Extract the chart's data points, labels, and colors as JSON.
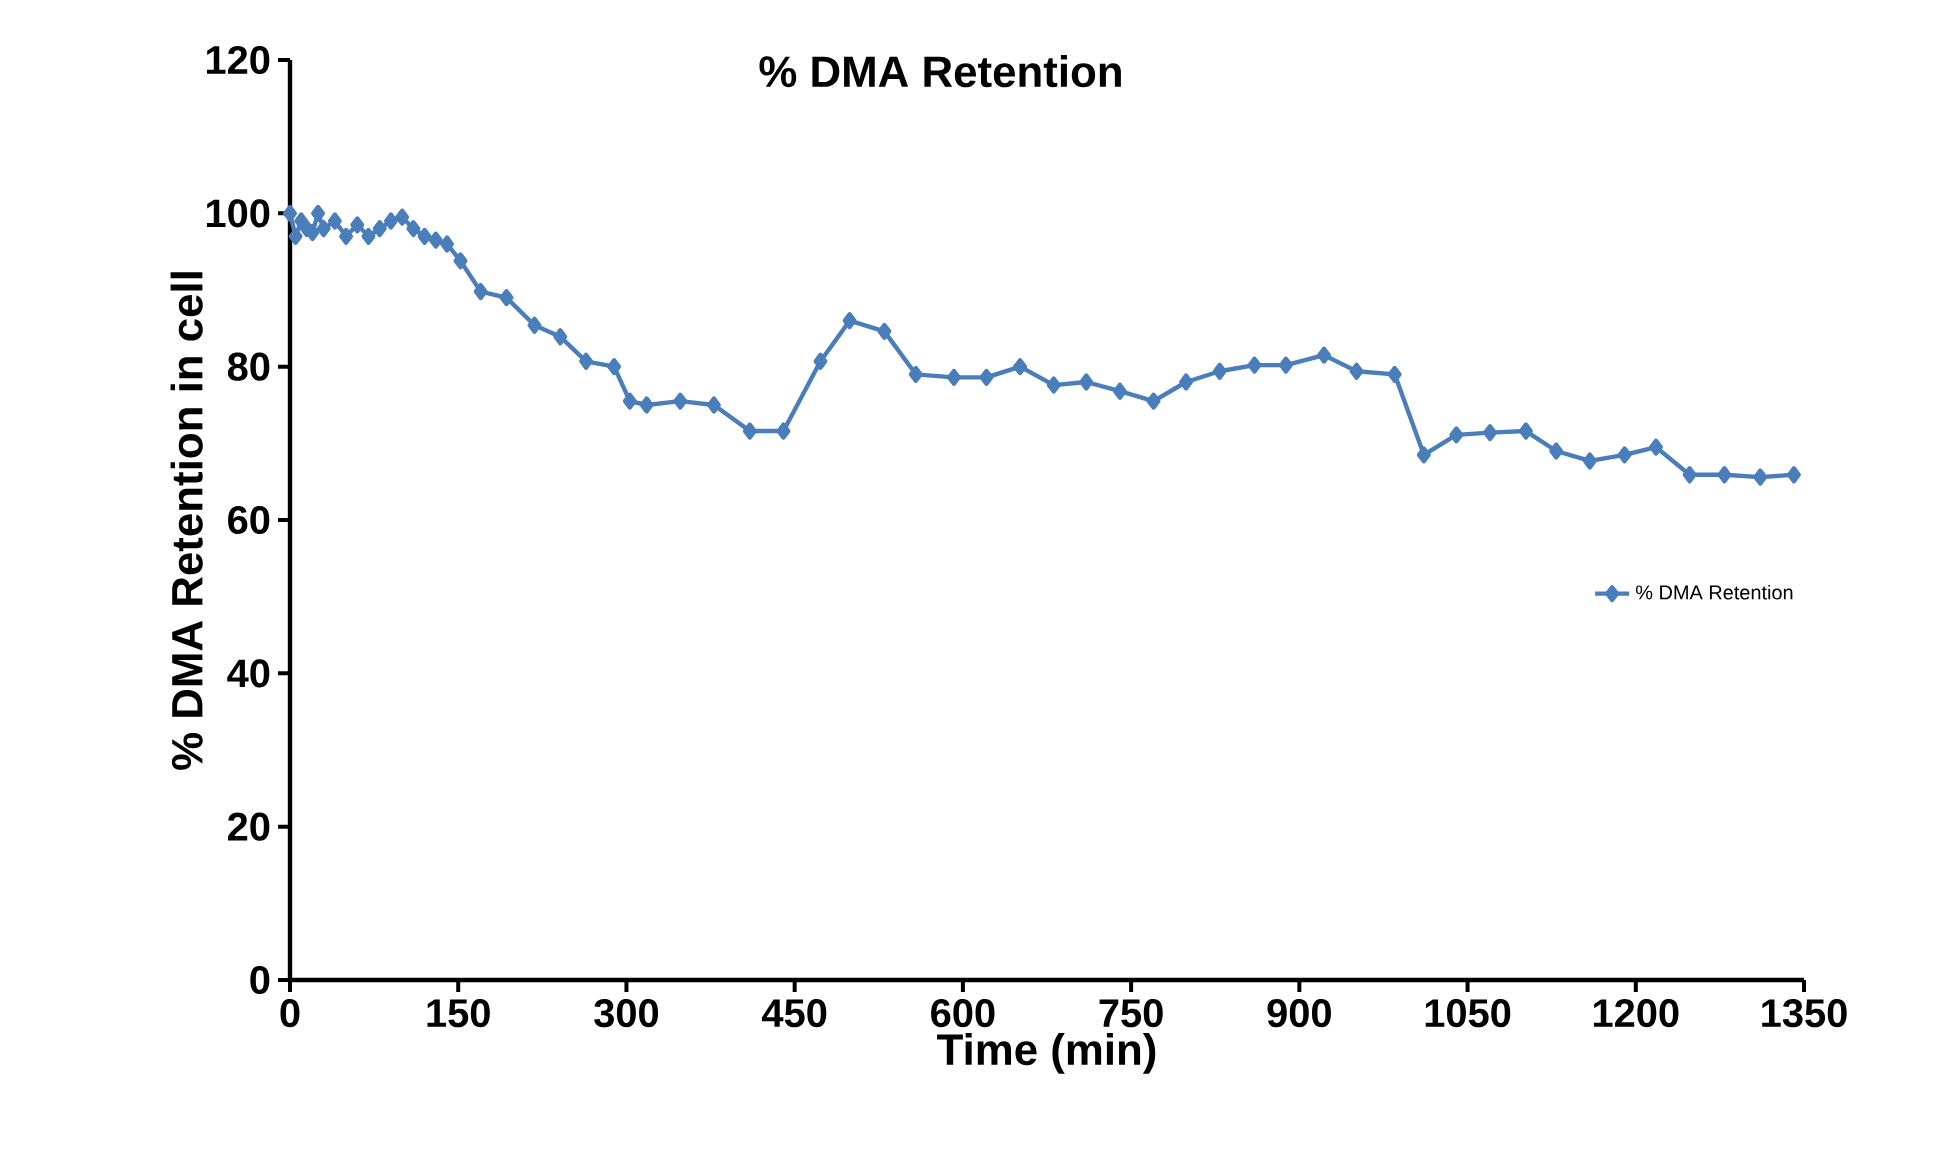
{
  "chart_data": {
    "type": "line",
    "title": "% DMA Retention",
    "xlabel": "Time (min)",
    "ylabel": "% DMA Retention in cell",
    "xlim": [
      0,
      1350
    ],
    "xticks": [
      0,
      150,
      300,
      450,
      600,
      750,
      900,
      1050,
      1200,
      1350
    ],
    "ylim": [
      0,
      120
    ],
    "yticks": [
      0,
      20,
      40,
      60,
      80,
      100,
      120
    ],
    "legend": "right",
    "marker": "diamond",
    "line_style": "solid",
    "grid": false,
    "series": [
      {
        "name": "% DMA Retention",
        "color": "#4a7ebb",
        "x": [
          0,
          5,
          10,
          15,
          20,
          25,
          30,
          40,
          50,
          60,
          70,
          80,
          90,
          100,
          110,
          120,
          130,
          140,
          152,
          170,
          193,
          218,
          241,
          264,
          289,
          303,
          318,
          348,
          378,
          410,
          440,
          473,
          499,
          530,
          558,
          592,
          621,
          651,
          681,
          710,
          740,
          770,
          799,
          829,
          860,
          888,
          922,
          951,
          985,
          1011,
          1040,
          1070,
          1102,
          1129,
          1159,
          1190,
          1218,
          1248,
          1279,
          1311,
          1341
        ],
        "values": [
          100,
          97,
          99,
          98,
          97.5,
          100,
          98,
          99,
          97,
          98.5,
          97,
          98,
          99,
          99.5,
          98,
          97,
          96.5,
          96,
          93.8,
          89.8,
          89,
          85.4,
          83.9,
          80.7,
          80,
          75.5,
          75,
          75.5,
          75,
          71.6,
          71.6,
          80.7,
          86,
          84.6,
          79,
          78.6,
          78.6,
          80,
          77.6,
          78,
          76.8,
          75.5,
          78,
          79.4,
          80.2,
          80.2,
          81.5,
          79.4,
          79,
          68.5,
          71.1,
          71.4,
          71.6,
          69,
          67.7,
          68.5,
          69.5,
          65.9,
          65.9,
          65.6,
          65.9
        ]
      }
    ]
  }
}
